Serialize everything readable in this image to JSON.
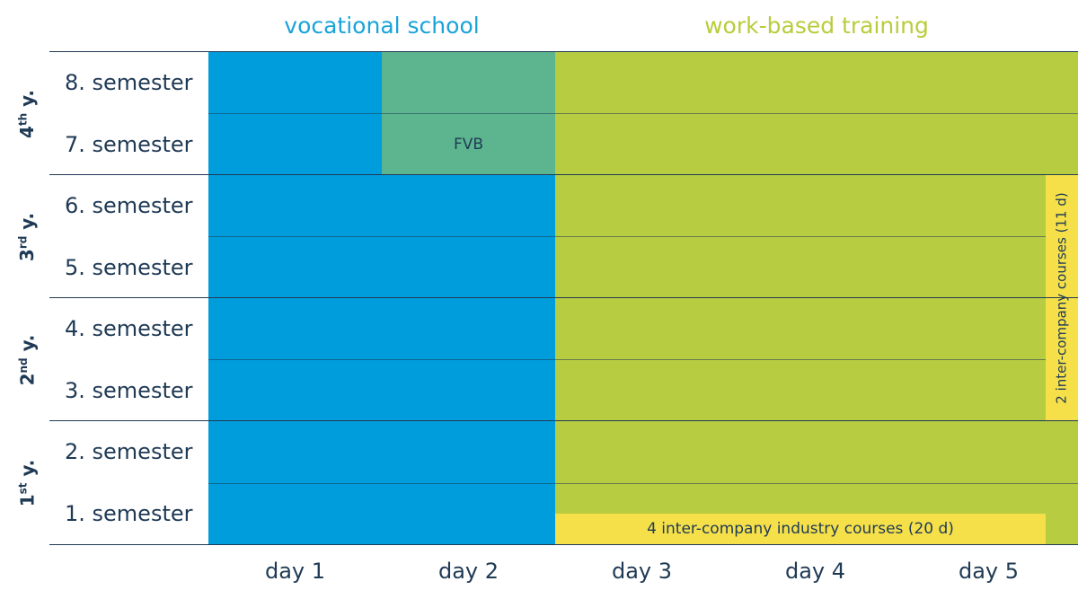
{
  "headers": {
    "vocational": "vocational school",
    "work": "work-based training"
  },
  "years": [
    {
      "num": "4",
      "suffix": "th",
      "tail": " y."
    },
    {
      "num": "3",
      "suffix": "rd",
      "tail": " y."
    },
    {
      "num": "2",
      "suffix": "nd",
      "tail": " y."
    },
    {
      "num": "1",
      "suffix": "st",
      "tail": " y."
    }
  ],
  "semesters": [
    "8. semester",
    "7. semester",
    "6. semester",
    "5. semester",
    "4. semester",
    "3. semester",
    "2. semester",
    "1. semester"
  ],
  "days": [
    "day 1",
    "day 2",
    "day 3",
    "day 4",
    "day 5"
  ],
  "fvb_label": "FVB",
  "courses_bottom": "4 inter-company industry courses (20 d)",
  "courses_side": "2 inter-company courses (11 d)",
  "colors": {
    "school_blue": "#009ddc",
    "fvb_green": "#5cb58f",
    "work_green": "#b8cc41",
    "courses_yellow": "#f5e04a",
    "text_dark": "#1f3a55",
    "header_blue": "#1aa3d9",
    "header_green": "#b9cc3c"
  }
}
